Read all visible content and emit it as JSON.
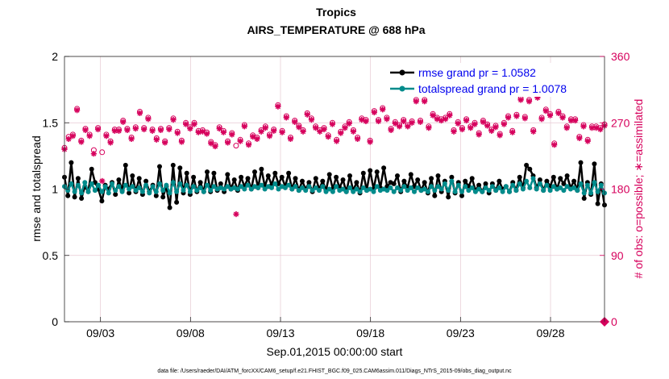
{
  "chart_data": {
    "type": "line",
    "title": "Tropics",
    "subtitle": "AIRS_TEMPERATURE @ 688 hPa",
    "xlabel": "Sep.01,2015 00:00:00 start",
    "ylabel": "rmse and totalspread",
    "ylabel_right": "# of obs: o=possible; ∗=assimilated",
    "footnote": "data file: /Users/raeder/DAI/ATM_forcXX/CAM6_setup/f.e21.FHIST_BGC.f09_025.CAM6assim.011/Diags_NTrS_2015-09/obs_diag_output.nc",
    "xlim": [
      1,
      31
    ],
    "ylim": [
      0,
      2
    ],
    "ylim_right": [
      0,
      360
    ],
    "x_ticks": [
      3,
      8,
      13,
      18,
      23,
      28
    ],
    "x_tick_labels": [
      "09/03",
      "09/08",
      "09/13",
      "09/18",
      "09/23",
      "09/28"
    ],
    "y_ticks": [
      0,
      0.5,
      1,
      1.5,
      2
    ],
    "y_tick_labels": [
      "0",
      "0.5",
      "1",
      "1.5",
      "2"
    ],
    "y_ticks_right": [
      0,
      90,
      180,
      270,
      360
    ],
    "y_tick_labels_right": [
      "0",
      "90",
      "180",
      "270",
      "360"
    ],
    "legend": [
      {
        "name": "rmse grand pr = 1.0582",
        "color": "#000000"
      },
      {
        "name": "totalspread grand pr = 1.0078",
        "color": "#008b8b"
      }
    ],
    "series": [
      {
        "name": "rmse",
        "color": "#000000",
        "axis": "left",
        "values": [
          1.09,
          0.95,
          1.2,
          0.94,
          1.08,
          0.93,
          1.02,
          0.98,
          1.15,
          1.05,
          1.0,
          0.91,
          1.03,
          1.0,
          1.05,
          0.96,
          1.07,
          0.99,
          1.18,
          0.97,
          1.1,
          0.98,
          1.08,
          0.96,
          1.06,
          0.98,
          1.03,
          0.95,
          1.17,
          0.94,
          1.02,
          0.86,
          1.18,
          0.9,
          1.16,
          0.97,
          1.12,
          0.96,
          1.09,
          0.98,
          1.05,
          0.98,
          1.13,
          0.98,
          1.12,
          0.99,
          1.04,
          0.98,
          1.11,
          1.0,
          1.07,
          0.99,
          1.09,
          1.02,
          1.08,
          1.0,
          1.13,
          1.01,
          1.15,
          1.02,
          1.1,
          1.03,
          1.12,
          1.04,
          1.09,
          1.02,
          1.12,
          1.0,
          1.08,
          0.99,
          1.06,
          1.0,
          1.05,
          0.98,
          1.08,
          1.0,
          1.06,
          0.99,
          1.11,
          1.0,
          1.09,
          1.01,
          1.07,
          0.98,
          1.1,
          0.99,
          1.05,
          0.97,
          1.12,
          0.99,
          1.14,
          1.0,
          1.13,
          1.01,
          1.16,
          1.02,
          1.05,
          1.04,
          1.1,
          0.98,
          1.06,
          1.01,
          1.11,
          1.02,
          1.07,
          0.99,
          1.05,
          0.97,
          1.08,
          0.95,
          1.1,
          0.98,
          1.06,
          0.94,
          1.09,
          0.97,
          1.05,
          0.95,
          1.06,
          1.02,
          1.08,
          0.99,
          1.03,
          0.98,
          1.04,
          0.97,
          1.04,
          0.99,
          1.06,
          1.0,
          1.02,
          0.98,
          1.05,
          0.99,
          1.09,
          1.01,
          1.18,
          1.15,
          1.1,
          1.01,
          1.07,
          0.99,
          1.06,
          1.02,
          1.09,
          1.0,
          1.08,
          1.04,
          1.1,
          1.01,
          1.06,
          0.99,
          1.2,
          0.93,
          1.05,
          0.96,
          1.19,
          0.89,
          1.04,
          0.88
        ]
      },
      {
        "name": "totalspread",
        "color": "#008b8b",
        "axis": "left",
        "values": [
          1.02,
          0.99,
          1.04,
          0.98,
          1.03,
          0.97,
          1.05,
          0.98,
          1.04,
          0.99,
          1.03,
          0.98,
          1.02,
          0.97,
          1.04,
          0.99,
          1.02,
          0.98,
          1.03,
          1.0,
          1.02,
          0.99,
          1.01,
          0.98,
          1.03,
          0.97,
          1.02,
          0.98,
          1.04,
          0.99,
          1.03,
          0.97,
          1.05,
          0.98,
          1.04,
          0.99,
          1.03,
          0.98,
          1.02,
          0.99,
          1.01,
          0.98,
          1.03,
          0.99,
          1.02,
          1.0,
          1.01,
          1.0,
          1.02,
          1.0,
          1.01,
          1.0,
          1.02,
          1.0,
          1.03,
          1.0,
          1.02,
          1.01,
          1.03,
          1.0,
          1.02,
          1.01,
          1.04,
          1.0,
          1.02,
          1.01,
          1.03,
          1.0,
          1.02,
          0.99,
          1.01,
          0.99,
          1.02,
          0.99,
          1.01,
          0.99,
          1.02,
          0.98,
          1.0,
          0.98,
          1.02,
          0.99,
          1.0,
          0.98,
          1.01,
          0.98,
          1.0,
          0.98,
          1.01,
          0.99,
          1.0,
          0.98,
          1.02,
          0.99,
          1.0,
          0.99,
          1.01,
          0.98,
          1.01,
          0.99,
          1.02,
          0.99,
          1.01,
          0.98,
          1.01,
          0.99,
          1.0,
          0.98,
          1.02,
          0.99,
          1.02,
          1.0,
          1.04,
          0.99,
          1.06,
          0.98,
          1.03,
          0.98,
          1.02,
          0.99,
          1.01,
          0.98,
          1.0,
          0.98,
          1.01,
          0.99,
          1.02,
          0.99,
          1.01,
          0.98,
          1.02,
          0.98,
          1.03,
          0.99,
          1.04,
          1.0,
          1.06,
          1.01,
          1.08,
          1.0,
          1.04,
          0.99,
          1.03,
          0.99,
          1.02,
          1.0,
          1.01,
          0.99,
          1.02,
          1.0,
          1.01,
          0.99,
          1.04,
          0.97,
          1.03,
          0.97,
          1.05,
          0.98,
          1.03,
          0.97
        ]
      },
      {
        "name": "obs_possible",
        "color": "#d6005c",
        "axis": "right",
        "values": [
          236,
          251,
          254,
          289,
          246,
          262,
          254,
          233,
          263,
          230,
          254,
          245,
          261,
          261,
          273,
          262,
          250,
          264,
          285,
          263,
          277,
          261,
          249,
          262,
          245,
          263,
          276,
          258,
          246,
          270,
          264,
          270,
          259,
          260,
          257,
          244,
          240,
          264,
          259,
          245,
          256,
          239,
          247,
          267,
          242,
          253,
          250,
          260,
          265,
          254,
          261,
          294,
          259,
          279,
          250,
          273,
          266,
          260,
          283,
          276,
          265,
          260,
          263,
          253,
          270,
          247,
          258,
          265,
          271,
          260,
          250,
          276,
          274,
          246,
          286,
          274,
          290,
          277,
          262,
          271,
          267,
          274,
          267,
          272,
          301,
          273,
          301,
          265,
          282,
          277,
          275,
          277,
          282,
          260,
          271,
          263,
          275,
          265,
          270,
          256,
          273,
          268,
          261,
          266,
          255,
          270,
          279,
          259,
          281,
          303,
          278,
          301,
          260,
          306,
          277,
          288,
          282,
          242,
          285,
          279,
          265,
          275,
          275,
          251,
          267,
          247,
          265,
          265,
          263,
          268
        ]
      },
      {
        "name": "obs_assimilated",
        "color": "#d6005c",
        "axis": "right",
        "values": [
          234,
          248,
          252,
          287,
          244,
          260,
          252,
          228,
          261,
          191,
          252,
          243,
          259,
          259,
          271,
          260,
          248,
          262,
          283,
          261,
          275,
          259,
          247,
          260,
          243,
          261,
          274,
          256,
          244,
          268,
          262,
          268,
          257,
          258,
          255,
          242,
          238,
          262,
          257,
          243,
          254,
          146,
          245,
          265,
          240,
          251,
          248,
          258,
          263,
          252,
          259,
          292,
          257,
          277,
          248,
          271,
          264,
          258,
          281,
          274,
          263,
          258,
          261,
          251,
          268,
          245,
          256,
          263,
          269,
          258,
          248,
          274,
          272,
          244,
          284,
          272,
          288,
          275,
          260,
          269,
          265,
          272,
          265,
          270,
          299,
          271,
          299,
          263,
          280,
          275,
          273,
          275,
          280,
          258,
          269,
          261,
          273,
          263,
          268,
          254,
          271,
          266,
          259,
          264,
          253,
          268,
          277,
          257,
          279,
          301,
          276,
          299,
          258,
          304,
          275,
          286,
          280,
          240,
          283,
          277,
          263,
          273,
          273,
          249,
          265,
          245,
          263,
          263,
          261,
          266
        ]
      }
    ]
  }
}
